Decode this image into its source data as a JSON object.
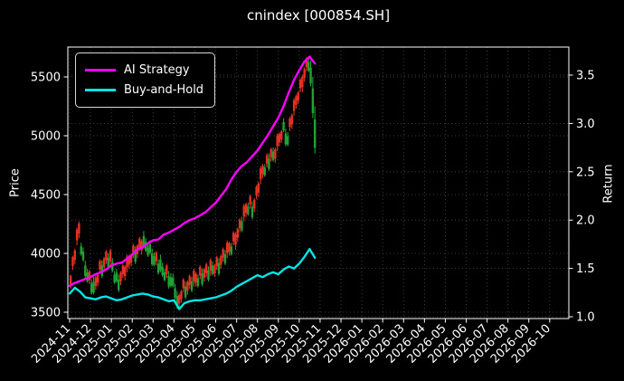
{
  "chart_data": {
    "type": "candlestick_with_lines",
    "title": "cnindex [000854.SH]",
    "theme": "dark_background",
    "grid": "dotted, on both price and return tick levels and monthly x ticks",
    "legend_position": "upper left",
    "x_axis": {
      "unit": "month",
      "tick_labels": [
        "2024-11",
        "2024-12",
        "2025-01",
        "2025-02",
        "2025-03",
        "2025-04",
        "2025-05",
        "2025-06",
        "2025-07",
        "2025-08",
        "2025-09",
        "2025-10",
        "2025-11",
        "2025-12",
        "2026-01",
        "2026-02",
        "2026-03",
        "2026-04",
        "2026-05",
        "2026-06",
        "2026-07",
        "2026-08",
        "2026-09",
        "2026-10"
      ],
      "data_range_note": "plotted data spans 2024-11 through early 2025-11; axis extends to 2026-10"
    },
    "left_axis": {
      "label": "Price",
      "ticks": [
        3500,
        4000,
        4500,
        5000,
        5500
      ],
      "range": [
        3450,
        5750
      ]
    },
    "right_axis": {
      "label": "Return",
      "ticks": [
        1.0,
        1.5,
        2.0,
        2.5,
        3.0,
        3.5
      ],
      "range": [
        0.98,
        3.81
      ]
    },
    "series": [
      {
        "name": "AI Strategy",
        "axis": "right",
        "color": "#ff00ff",
        "x_start_month": 0,
        "x_step_month": 0.25,
        "values": [
          1.32,
          1.35,
          1.37,
          1.39,
          1.41,
          1.44,
          1.46,
          1.49,
          1.53,
          1.55,
          1.56,
          1.6,
          1.64,
          1.7,
          1.72,
          1.76,
          1.79,
          1.8,
          1.85,
          1.87,
          1.9,
          1.93,
          1.97,
          2.0,
          2.02,
          2.05,
          2.08,
          2.13,
          2.18,
          2.25,
          2.32,
          2.42,
          2.5,
          2.56,
          2.6,
          2.66,
          2.72,
          2.8,
          2.88,
          2.97,
          3.06,
          3.18,
          3.32,
          3.45,
          3.55,
          3.64,
          3.69,
          3.62
        ]
      },
      {
        "name": "Buy-and-Hold",
        "axis": "right",
        "color": "#00e5e5",
        "x_start_month": 0,
        "x_step_month": 0.25,
        "values": [
          1.24,
          1.3,
          1.26,
          1.2,
          1.19,
          1.18,
          1.2,
          1.21,
          1.19,
          1.17,
          1.18,
          1.2,
          1.22,
          1.23,
          1.24,
          1.23,
          1.21,
          1.2,
          1.18,
          1.16,
          1.17,
          1.08,
          1.14,
          1.16,
          1.17,
          1.17,
          1.18,
          1.19,
          1.2,
          1.22,
          1.24,
          1.27,
          1.31,
          1.34,
          1.37,
          1.4,
          1.43,
          1.41,
          1.44,
          1.46,
          1.44,
          1.49,
          1.52,
          1.5,
          1.55,
          1.62,
          1.7,
          1.61
        ]
      }
    ],
    "candles": {
      "axis": "left",
      "up_color": "#e73223",
      "down_color": "#21a234",
      "x_start_month": 0.05,
      "x_step_month": 0.1,
      "bar_format": "[high, low, up(1=red/up, 0=green/down)]",
      "bars": [
        [
          3820,
          3700,
          1
        ],
        [
          3980,
          3860,
          1
        ],
        [
          4040,
          3910,
          1
        ],
        [
          4220,
          4070,
          1
        ],
        [
          4270,
          4130,
          1
        ],
        [
          4090,
          3980,
          0
        ],
        [
          4050,
          3930,
          0
        ],
        [
          3940,
          3790,
          0
        ],
        [
          3870,
          3750,
          0
        ],
        [
          3860,
          3740,
          1
        ],
        [
          3780,
          3650,
          0
        ],
        [
          3800,
          3650,
          0
        ],
        [
          3810,
          3690,
          1
        ],
        [
          3830,
          3720,
          1
        ],
        [
          3950,
          3830,
          1
        ],
        [
          3940,
          3790,
          0
        ],
        [
          3970,
          3850,
          1
        ],
        [
          4030,
          3910,
          1
        ],
        [
          4000,
          3870,
          0
        ],
        [
          4040,
          3890,
          1
        ],
        [
          3960,
          3840,
          0
        ],
        [
          3850,
          3740,
          0
        ],
        [
          3870,
          3750,
          0
        ],
        [
          3820,
          3670,
          0
        ],
        [
          3850,
          3730,
          1
        ],
        [
          3910,
          3790,
          1
        ],
        [
          3900,
          3770,
          1
        ],
        [
          3990,
          3840,
          1
        ],
        [
          3990,
          3870,
          1
        ],
        [
          4000,
          3890,
          1
        ],
        [
          4080,
          3960,
          1
        ],
        [
          4060,
          3910,
          0
        ],
        [
          4080,
          3960,
          1
        ],
        [
          4140,
          4020,
          1
        ],
        [
          4120,
          3990,
          1
        ],
        [
          4190,
          4040,
          0
        ],
        [
          4130,
          4010,
          0
        ],
        [
          4080,
          3970,
          0
        ],
        [
          4110,
          3990,
          0
        ],
        [
          4040,
          3890,
          0
        ],
        [
          4010,
          3890,
          0
        ],
        [
          4020,
          3900,
          1
        ],
        [
          3950,
          3820,
          0
        ],
        [
          3990,
          3840,
          0
        ],
        [
          3920,
          3800,
          0
        ],
        [
          3870,
          3760,
          0
        ],
        [
          3910,
          3790,
          1
        ],
        [
          3850,
          3700,
          0
        ],
        [
          3830,
          3710,
          0
        ],
        [
          3830,
          3710,
          0
        ],
        [
          3740,
          3610,
          0
        ],
        [
          3680,
          3530,
          0
        ],
        [
          3660,
          3540,
          1
        ],
        [
          3690,
          3580,
          1
        ],
        [
          3790,
          3670,
          1
        ],
        [
          3760,
          3610,
          0
        ],
        [
          3770,
          3650,
          1
        ],
        [
          3820,
          3700,
          1
        ],
        [
          3800,
          3670,
          0
        ],
        [
          3870,
          3720,
          1
        ],
        [
          3840,
          3720,
          1
        ],
        [
          3820,
          3710,
          0
        ],
        [
          3900,
          3780,
          1
        ],
        [
          3870,
          3720,
          0
        ],
        [
          3880,
          3760,
          1
        ],
        [
          3920,
          3800,
          1
        ],
        [
          3890,
          3760,
          0
        ],
        [
          3960,
          3810,
          1
        ],
        [
          3930,
          3810,
          0
        ],
        [
          3910,
          3800,
          1
        ],
        [
          3980,
          3860,
          1
        ],
        [
          3960,
          3810,
          0
        ],
        [
          3990,
          3870,
          1
        ],
        [
          4050,
          3930,
          1
        ],
        [
          4030,
          3900,
          0
        ],
        [
          4110,
          3960,
          1
        ],
        [
          4100,
          3980,
          1
        ],
        [
          4090,
          3980,
          0
        ],
        [
          4190,
          4070,
          1
        ],
        [
          4180,
          4030,
          1
        ],
        [
          4220,
          4100,
          1
        ],
        [
          4300,
          4180,
          1
        ],
        [
          4310,
          4180,
          0
        ],
        [
          4420,
          4270,
          1
        ],
        [
          4430,
          4310,
          1
        ],
        [
          4430,
          4320,
          0
        ],
        [
          4500,
          4380,
          1
        ],
        [
          4440,
          4290,
          0
        ],
        [
          4470,
          4350,
          1
        ],
        [
          4580,
          4460,
          1
        ],
        [
          4610,
          4480,
          1
        ],
        [
          4740,
          4590,
          1
        ],
        [
          4760,
          4640,
          1
        ],
        [
          4760,
          4650,
          0
        ],
        [
          4850,
          4730,
          1
        ],
        [
          4850,
          4700,
          0
        ],
        [
          4900,
          4780,
          1
        ],
        [
          4900,
          4780,
          0
        ],
        [
          4900,
          4770,
          1
        ],
        [
          5020,
          4870,
          1
        ],
        [
          5030,
          4910,
          1
        ],
        [
          5050,
          4940,
          1
        ],
        [
          5150,
          5030,
          0
        ],
        [
          5060,
          4910,
          0
        ],
        [
          5030,
          4910,
          0
        ],
        [
          5160,
          5040,
          1
        ],
        [
          5190,
          5060,
          1
        ],
        [
          5320,
          5170,
          1
        ],
        [
          5350,
          5230,
          1
        ],
        [
          5380,
          5270,
          1
        ],
        [
          5490,
          5370,
          1
        ],
        [
          5520,
          5370,
          1
        ],
        [
          5580,
          5460,
          1
        ],
        [
          5670,
          5550,
          1
        ],
        [
          5660,
          5540,
          0
        ],
        [
          5640,
          5420,
          0
        ],
        [
          5500,
          5150,
          0
        ],
        [
          5250,
          4850,
          0
        ]
      ]
    },
    "colors": {
      "background": "#000000",
      "text": "#ffffff",
      "spines": "#ffffff",
      "grid": "#bbbbbb",
      "ai_strategy_line": "#ff00ff",
      "buy_and_hold_line": "#00e5e5",
      "candle_up": "#e73223",
      "candle_down": "#21a234"
    }
  }
}
